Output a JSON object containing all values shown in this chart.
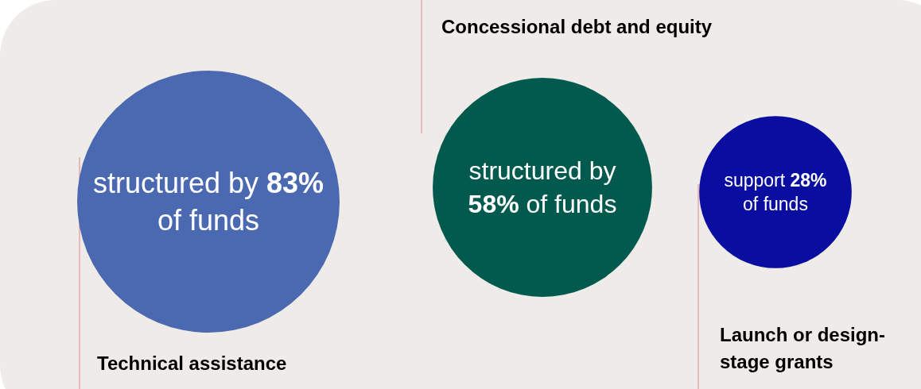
{
  "chart_data": {
    "type": "other",
    "categories": [
      "Technical assistance",
      "Concessional debt and equity",
      "Launch or design-stage grants"
    ],
    "values": [
      83,
      58,
      28
    ],
    "colors": [
      "#4a69b0",
      "#025a4e",
      "#0a0ea0"
    ],
    "value_labels": [
      "structured by 83% of funds",
      "structured by 58% of funds",
      "support 28% of funds"
    ]
  }
}
